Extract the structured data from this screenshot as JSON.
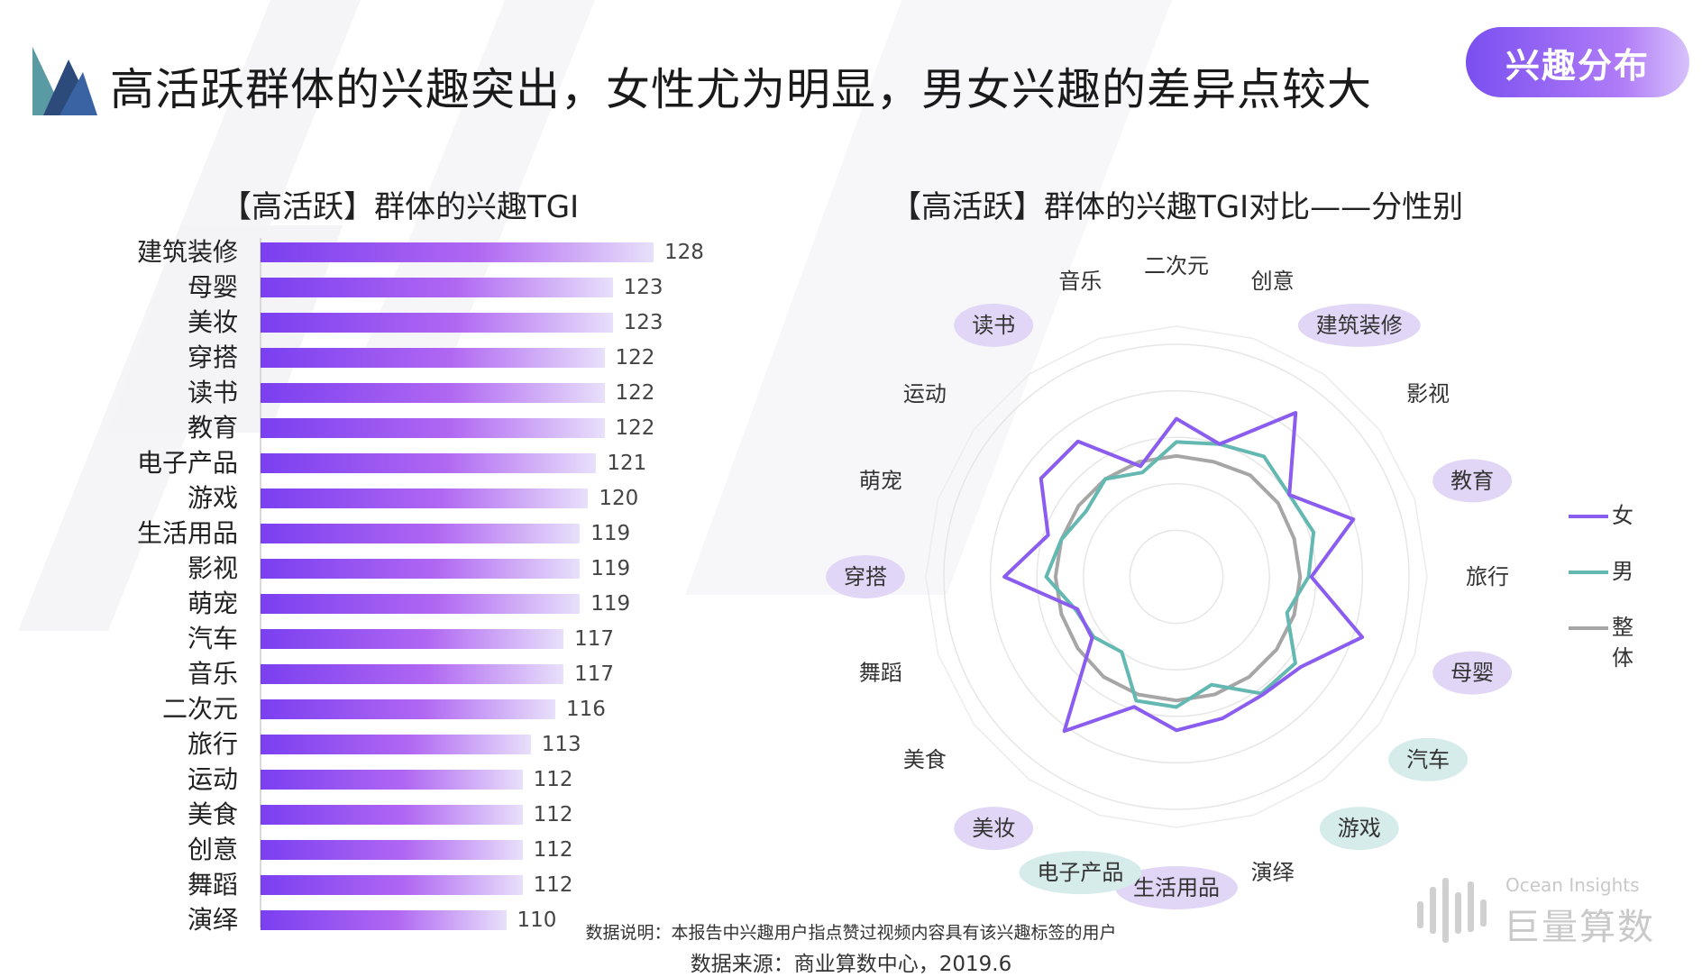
{
  "header": {
    "title": "高活跃群体的兴趣突出，女性尤为明显，男女兴趣的差异点较大",
    "badge": "兴趣分布"
  },
  "colors": {
    "female": "#8a5cf0",
    "male": "#63b8b1",
    "overall": "#a6a6a6",
    "bar_start": "#7a3ff0",
    "bar_end": "#e8e0fb",
    "pill_start": "#7a4ff0",
    "tag_purple": "#e1d6f6",
    "tag_teal": "#d6ecea"
  },
  "chart_data": [
    {
      "type": "bar",
      "orientation": "horizontal",
      "title": "【高活跃】群体的兴趣TGI",
      "categories": [
        "建筑装修",
        "母婴",
        "美妆",
        "穿搭",
        "读书",
        "教育",
        "电子产品",
        "游戏",
        "生活用品",
        "影视",
        "萌宠",
        "汽车",
        "音乐",
        "二次元",
        "旅行",
        "运动",
        "美食",
        "创意",
        "舞蹈",
        "演绎"
      ],
      "values": [
        128,
        123,
        123,
        122,
        122,
        122,
        121,
        120,
        119,
        119,
        119,
        117,
        117,
        116,
        113,
        112,
        112,
        112,
        112,
        110
      ],
      "xlim": [
        80,
        128
      ]
    },
    {
      "type": "radar",
      "title": "【高活跃】群体的兴趣TGI对比——分性别",
      "categories": [
        "二次元",
        "创意",
        "建筑装修",
        "影视",
        "教育",
        "旅行",
        "母婴",
        "汽车",
        "游戏",
        "演绎",
        "生活用品",
        "电子产品",
        "美妆",
        "美食",
        "舞蹈",
        "穿搭",
        "萌宠",
        "运动",
        "读书",
        "音乐"
      ],
      "highlight": {
        "purple": [
          "建筑装修",
          "教育",
          "母婴",
          "生活用品",
          "美妆",
          "穿搭",
          "读书"
        ],
        "teal": [
          "汽车",
          "游戏",
          "电子产品"
        ]
      },
      "rlim": [
        0,
        250
      ],
      "series": [
        {
          "name": "女",
          "values": [
            170,
            150,
            218,
            150,
            200,
            145,
            210,
            165,
            157,
            160,
            165,
            147,
            205,
            112,
            112,
            185,
            145,
            180,
            180,
            125
          ]
        },
        {
          "name": "男",
          "values": [
            145,
            150,
            160,
            150,
            155,
            142,
            125,
            158,
            155,
            122,
            140,
            140,
            100,
            110,
            114,
            140,
            130,
            120,
            130,
            118
          ]
        },
        {
          "name": "整体",
          "values": [
            130,
            130,
            135,
            135,
            133,
            133,
            133,
            133,
            133,
            133,
            133,
            133,
            133,
            131,
            130,
            130,
            130,
            130,
            130,
            130
          ]
        }
      ],
      "legend": "right"
    }
  ],
  "footer": {
    "note": "数据说明：本报告中兴趣用户指点赞过视频内容具有该兴趣标签的用户",
    "source": "数据来源：商业算数中心，2019.6",
    "brand_en": "Ocean Insights",
    "brand_cn": "巨量算数"
  }
}
